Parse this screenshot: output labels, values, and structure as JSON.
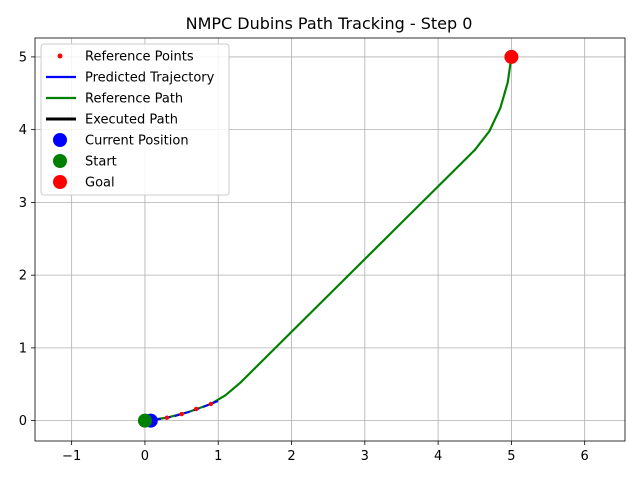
{
  "chart_data": {
    "type": "line",
    "title": "NMPC Dubins Path Tracking - Step 0",
    "xlabel": "",
    "ylabel": "",
    "xlim": [
      -1.5,
      6.55
    ],
    "ylim": [
      -0.28,
      5.26
    ],
    "xticks": [
      -1,
      0,
      1,
      2,
      3,
      4,
      5,
      6
    ],
    "yticks": [
      0,
      1,
      2,
      3,
      4,
      5
    ],
    "xtick_labels": [
      "−1",
      "0",
      "1",
      "2",
      "3",
      "4",
      "5",
      "6"
    ],
    "ytick_labels": [
      "0",
      "1",
      "2",
      "3",
      "4",
      "5"
    ],
    "grid": true,
    "legend_position": "top-left",
    "series": [
      {
        "name": "Reference Points",
        "kind": "points",
        "color": "#ff0000",
        "x": [
          0.1,
          0.3,
          0.5,
          0.7,
          0.9
        ],
        "y": [
          0.01,
          0.04,
          0.09,
          0.16,
          0.23
        ]
      },
      {
        "name": "Predicted Trajectory",
        "kind": "dashed-line",
        "color": "#0000ff",
        "x": [
          0.0,
          0.2,
          0.4,
          0.6,
          0.8,
          1.0
        ],
        "y": [
          0.0,
          0.02,
          0.06,
          0.12,
          0.19,
          0.27
        ]
      },
      {
        "name": "Reference Path",
        "kind": "line",
        "color": "#008000",
        "x": [
          0.0,
          0.3,
          0.6,
          0.9,
          1.1,
          1.3,
          1.5,
          2.0,
          2.5,
          3.0,
          3.5,
          4.0,
          4.5,
          4.7,
          4.85,
          4.95,
          5.0
        ],
        "y": [
          0.0,
          0.04,
          0.12,
          0.23,
          0.35,
          0.52,
          0.72,
          1.22,
          1.72,
          2.22,
          2.72,
          3.22,
          3.72,
          3.98,
          4.3,
          4.65,
          5.0
        ]
      },
      {
        "name": "Executed Path",
        "kind": "thick-line",
        "color": "#000000",
        "x": [
          0.0,
          0.08
        ],
        "y": [
          0.0,
          0.0
        ]
      },
      {
        "name": "Current Position",
        "kind": "marker",
        "color": "#0000ff",
        "x": [
          0.08
        ],
        "y": [
          0.0
        ]
      },
      {
        "name": "Start",
        "kind": "marker",
        "color": "#008000",
        "x": [
          0.0
        ],
        "y": [
          0.0
        ]
      },
      {
        "name": "Goal",
        "kind": "marker",
        "color": "#ff0000",
        "x": [
          5.0
        ],
        "y": [
          5.0
        ]
      }
    ]
  }
}
